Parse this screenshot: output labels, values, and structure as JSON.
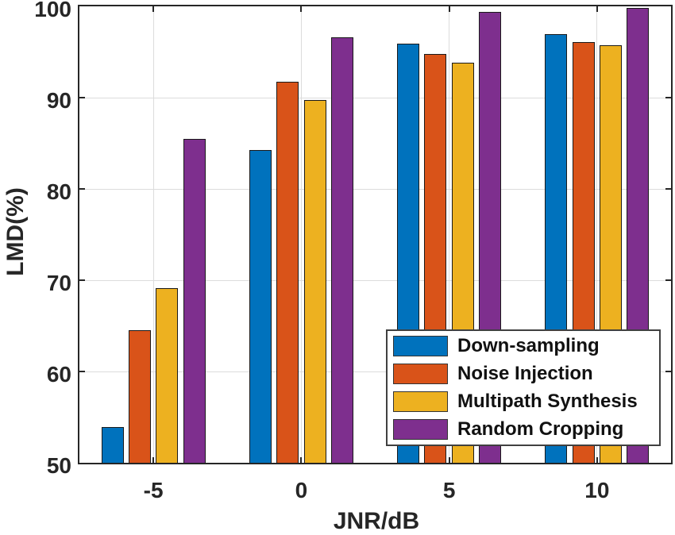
{
  "chart_data": {
    "type": "bar",
    "title": "",
    "xlabel": "JNR/dB",
    "ylabel": "LMD(%)",
    "categories": [
      "-5",
      "0",
      "5",
      "10"
    ],
    "ylim": [
      50,
      100
    ],
    "yticks": [
      50,
      60,
      70,
      80,
      90,
      100
    ],
    "grid": true,
    "legend_position": "bottom-right",
    "series": [
      {
        "name": "Down-sampling",
        "color": "#0072BD",
        "values": [
          53.9,
          84.3,
          95.9,
          97.0
        ]
      },
      {
        "name": "Noise Injection",
        "color": "#D95319",
        "values": [
          64.5,
          91.7,
          94.8,
          96.1
        ]
      },
      {
        "name": "Multipath Synthesis",
        "color": "#EDB120",
        "values": [
          69.1,
          89.7,
          93.8,
          95.7
        ]
      },
      {
        "name": "Random Cropping",
        "color": "#7E2F8E",
        "values": [
          85.5,
          96.6,
          99.4,
          99.8
        ]
      }
    ]
  },
  "style": {
    "axis_color": "#262626",
    "grid_color": "#dcdcdc",
    "bar_edge_color": "#1a1a1a",
    "tick_label_color": "#262626",
    "axis_label_color": "#262626",
    "legend_border_color": "#404040",
    "legend_text_color": "#111111",
    "background": "#ffffff"
  }
}
